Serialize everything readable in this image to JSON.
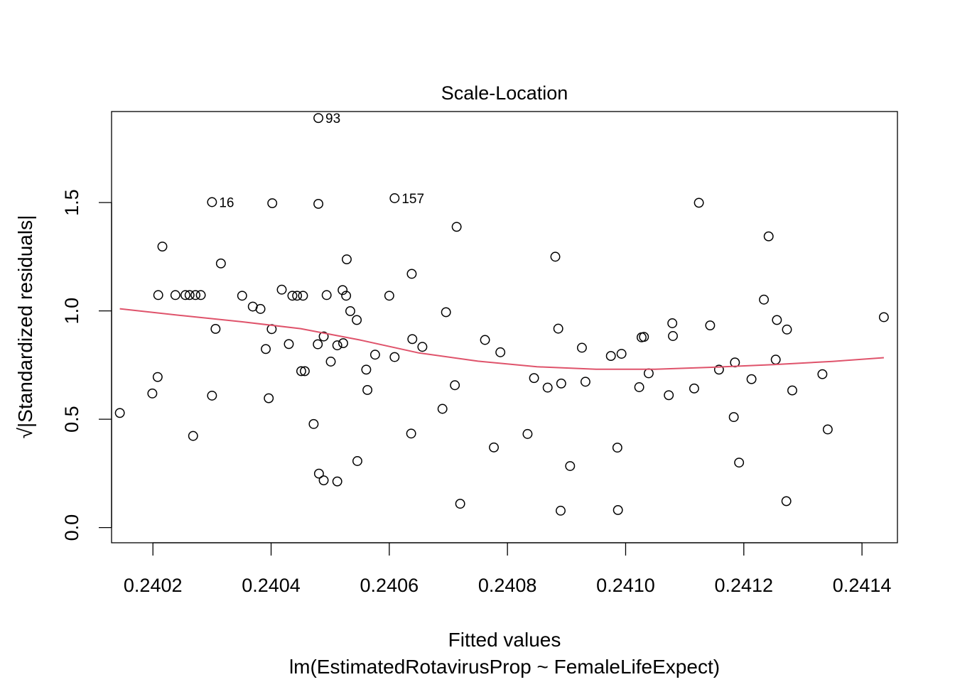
{
  "chart_data": {
    "type": "scatter",
    "title": "Scale-Location",
    "xlabel": "Fitted values",
    "subtitle": "lm(EstimatedRotavirusProp ~ FemaleLifeExpect)",
    "ylabel": "√|Standardized residuals|",
    "xlim": [
      0.24013,
      0.24146
    ],
    "ylim": [
      -0.07,
      1.92
    ],
    "x_ticks": [
      {
        "value": 0.2402,
        "label": "0.2402"
      },
      {
        "value": 0.2404,
        "label": "0.2404"
      },
      {
        "value": 0.2406,
        "label": "0.2406"
      },
      {
        "value": 0.2408,
        "label": "0.2408"
      },
      {
        "value": 0.241,
        "label": "0.2410"
      },
      {
        "value": 0.2412,
        "label": "0.2412"
      },
      {
        "value": 0.2414,
        "label": "0.2414"
      }
    ],
    "y_ticks": [
      {
        "value": 0.0,
        "label": "0.0"
      },
      {
        "value": 0.5,
        "label": "0.5"
      },
      {
        "value": 1.0,
        "label": "1.0"
      },
      {
        "value": 1.5,
        "label": "1.5"
      }
    ],
    "grid": false,
    "colors": {
      "points": "#000000",
      "smooth": "#DF536B"
    },
    "points": [
      [
        0.240144,
        0.529
      ],
      [
        0.240199,
        0.619
      ],
      [
        0.240208,
        0.695
      ],
      [
        0.240209,
        1.073
      ],
      [
        0.240216,
        1.297
      ],
      [
        0.240238,
        1.073
      ],
      [
        0.240255,
        1.073
      ],
      [
        0.240262,
        1.073
      ],
      [
        0.240268,
        0.423
      ],
      [
        0.240272,
        1.073
      ],
      [
        0.240281,
        1.073
      ],
      [
        0.2403,
        0.609
      ],
      [
        0.2403,
        1.502
      ],
      [
        0.240306,
        0.917
      ],
      [
        0.240315,
        1.219
      ],
      [
        0.240351,
        1.07
      ],
      [
        0.240369,
        1.02
      ],
      [
        0.240382,
        1.009
      ],
      [
        0.240391,
        0.824
      ],
      [
        0.240396,
        0.597
      ],
      [
        0.240401,
        0.916
      ],
      [
        0.240402,
        1.497
      ],
      [
        0.240418,
        1.098
      ],
      [
        0.24043,
        0.847
      ],
      [
        0.240436,
        1.07
      ],
      [
        0.240444,
        1.07
      ],
      [
        0.240451,
        0.722
      ],
      [
        0.240454,
        1.07
      ],
      [
        0.240457,
        0.722
      ],
      [
        0.240472,
        0.478
      ],
      [
        0.240479,
        0.846
      ],
      [
        0.24048,
        1.89
      ],
      [
        0.24048,
        1.494
      ],
      [
        0.240481,
        0.249
      ],
      [
        0.240489,
        0.882
      ],
      [
        0.240489,
        0.218
      ],
      [
        0.240494,
        1.073
      ],
      [
        0.240501,
        0.766
      ],
      [
        0.240512,
        0.841
      ],
      [
        0.240512,
        0.213
      ],
      [
        0.240521,
        1.096
      ],
      [
        0.240522,
        0.851
      ],
      [
        0.240527,
        1.07
      ],
      [
        0.240528,
        1.238
      ],
      [
        0.240534,
        0.999
      ],
      [
        0.240545,
        0.958
      ],
      [
        0.240546,
        0.307
      ],
      [
        0.240561,
        0.729
      ],
      [
        0.240563,
        0.635
      ],
      [
        0.240576,
        0.798
      ],
      [
        0.2406,
        1.07
      ],
      [
        0.240609,
        0.787
      ],
      [
        0.240609,
        1.52
      ],
      [
        0.240637,
        0.434
      ],
      [
        0.240638,
        1.171
      ],
      [
        0.240639,
        0.87
      ],
      [
        0.240656,
        0.834
      ],
      [
        0.24069,
        0.548
      ],
      [
        0.240696,
        0.994
      ],
      [
        0.240711,
        0.657
      ],
      [
        0.240714,
        1.388
      ],
      [
        0.24072,
        0.11
      ],
      [
        0.240762,
        0.866
      ],
      [
        0.240777,
        0.37
      ],
      [
        0.240788,
        0.809
      ],
      [
        0.240834,
        0.432
      ],
      [
        0.240845,
        0.69
      ],
      [
        0.240868,
        0.646
      ],
      [
        0.240881,
        1.25
      ],
      [
        0.240886,
        0.918
      ],
      [
        0.24089,
        0.078
      ],
      [
        0.240891,
        0.665
      ],
      [
        0.240906,
        0.284
      ],
      [
        0.240926,
        0.83
      ],
      [
        0.240932,
        0.673
      ],
      [
        0.240975,
        0.792
      ],
      [
        0.240986,
        0.369
      ],
      [
        0.240987,
        0.081
      ],
      [
        0.240993,
        0.802
      ],
      [
        0.241023,
        0.648
      ],
      [
        0.241027,
        0.878
      ],
      [
        0.241031,
        0.88
      ],
      [
        0.241039,
        0.712
      ],
      [
        0.241073,
        0.611
      ],
      [
        0.241079,
        0.943
      ],
      [
        0.24108,
        0.884
      ],
      [
        0.241116,
        0.642
      ],
      [
        0.241124,
        1.499
      ],
      [
        0.241143,
        0.933
      ],
      [
        0.241158,
        0.729
      ],
      [
        0.241183,
        0.51
      ],
      [
        0.241185,
        0.762
      ],
      [
        0.241192,
        0.3
      ],
      [
        0.241213,
        0.685
      ],
      [
        0.241234,
        1.052
      ],
      [
        0.241242,
        1.344
      ],
      [
        0.241254,
        0.775
      ],
      [
        0.241256,
        0.958
      ],
      [
        0.241272,
        0.122
      ],
      [
        0.241273,
        0.914
      ],
      [
        0.241282,
        0.633
      ],
      [
        0.241333,
        0.708
      ],
      [
        0.241342,
        0.453
      ],
      [
        0.241437,
        0.971
      ]
    ],
    "smooth": [
      [
        0.240144,
        1.01
      ],
      [
        0.24025,
        0.978
      ],
      [
        0.24035,
        0.95
      ],
      [
        0.24045,
        0.918
      ],
      [
        0.24055,
        0.866
      ],
      [
        0.24065,
        0.806
      ],
      [
        0.24075,
        0.768
      ],
      [
        0.24085,
        0.742
      ],
      [
        0.24095,
        0.731
      ],
      [
        0.24105,
        0.731
      ],
      [
        0.24115,
        0.74
      ],
      [
        0.24125,
        0.752
      ],
      [
        0.24135,
        0.767
      ],
      [
        0.241437,
        0.784
      ]
    ],
    "annotations": [
      {
        "label": "93",
        "x": 0.24048,
        "y": 1.89
      },
      {
        "label": "16",
        "x": 0.2403,
        "y": 1.502
      },
      {
        "label": "157",
        "x": 0.240609,
        "y": 1.52
      }
    ]
  }
}
